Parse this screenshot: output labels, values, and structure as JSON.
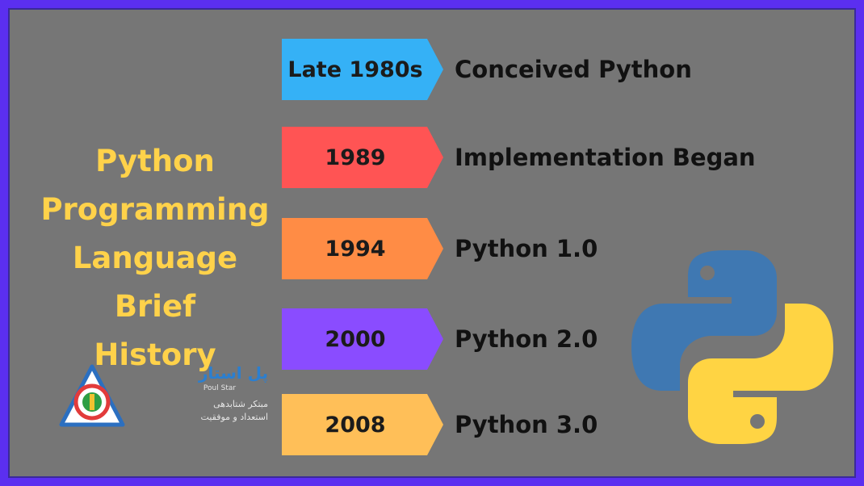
{
  "title_lines": [
    "Python",
    "Programming",
    "Language",
    "Brief",
    "History"
  ],
  "timeline": [
    {
      "year": "Late 1980s",
      "event": "Conceived Python",
      "color": "#35b1f6"
    },
    {
      "year": "1989",
      "event": "Implementation Began",
      "color": "#ff5454"
    },
    {
      "year": "1994",
      "event": "Python 1.0",
      "color": "#ff8c45"
    },
    {
      "year": "2000",
      "event": "Python 2.0",
      "color": "#8a4cff"
    },
    {
      "year": "2008",
      "event": "Python 3.0",
      "color": "#ffbf58"
    }
  ],
  "branding": {
    "name_fa": "پل استار",
    "name_en": "Poul Star",
    "tagline_1": "مبتکر شتابدهی",
    "tagline_2": "استعداد و موفقیت"
  },
  "colors": {
    "border": "#5b2ff0",
    "panel": "#767676",
    "title": "#ffd24a",
    "python_blue": "#3f78b2",
    "python_yellow": "#ffd443"
  },
  "icons": {
    "python_logo": "python-logo-icon",
    "brand_logo": "poul-star-logo-icon"
  }
}
